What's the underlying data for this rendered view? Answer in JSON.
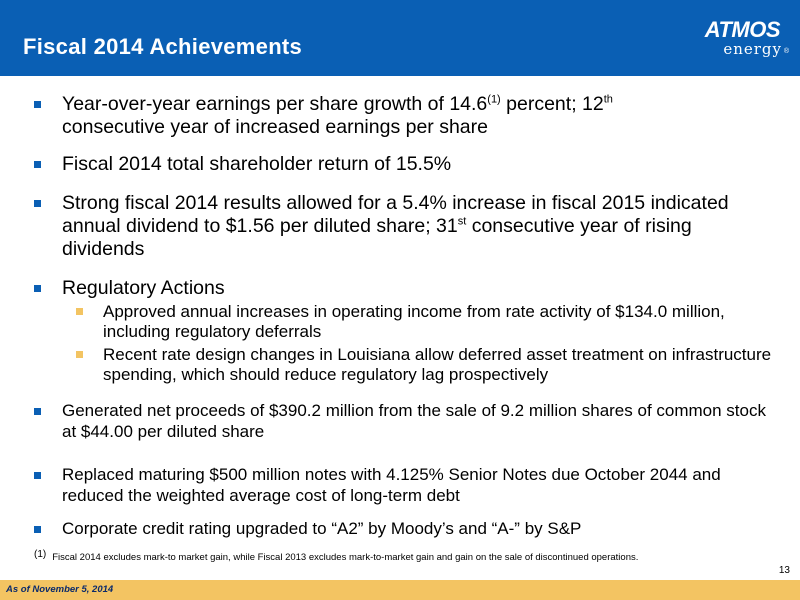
{
  "header": {
    "title": "Fiscal 2014 Achievements",
    "logo": {
      "top": "ATMOS",
      "bottom": "energy",
      "reg": "®"
    }
  },
  "bullets": [
    {
      "pre": "Year-over-year earnings per share growth of 14.6",
      "sup1": "(1)",
      "mid": " percent; 12",
      "sup2": "th",
      "post": "consecutive year of increased earnings per share"
    },
    {
      "text": "Fiscal 2014 total shareholder return of 15.5%"
    },
    {
      "pre": "Strong fiscal 2014 results allowed for a 5.4% increase in fiscal 2015 indicated annual dividend to $1.56 per diluted share; 31",
      "sup": "st",
      "post": " consecutive year of rising dividends"
    },
    {
      "text": "Regulatory Actions",
      "subs": [
        "Approved annual increases in operating income from rate activity of $134.0 million, including regulatory deferrals",
        "Recent rate design changes in Louisiana allow deferred asset treatment on infrastructure spending, which should reduce regulatory lag prospectively"
      ]
    },
    {
      "text": "Generated net proceeds of $390.2 million from the sale of 9.2 million shares of common stock at $44.00 per diluted share"
    },
    {
      "text": "Replaced maturing $500 million notes with 4.125% Senior Notes due October 2044 and reduced the weighted average cost of long-term debt"
    },
    {
      "text": "Corporate credit rating upgraded to “A2” by Moody’s and “A-” by S&P"
    }
  ],
  "footnote": {
    "mark": "(1)",
    "text": "Fiscal 2014 excludes mark-to market gain, while Fiscal 2013 excludes mark-to-market gain and gain on the sale of discontinued operations."
  },
  "page_number": "13",
  "as_of": "As of November 5, 2014",
  "colors": {
    "header_blue": "#0a5fb4",
    "accent_gold": "#f3c462"
  }
}
